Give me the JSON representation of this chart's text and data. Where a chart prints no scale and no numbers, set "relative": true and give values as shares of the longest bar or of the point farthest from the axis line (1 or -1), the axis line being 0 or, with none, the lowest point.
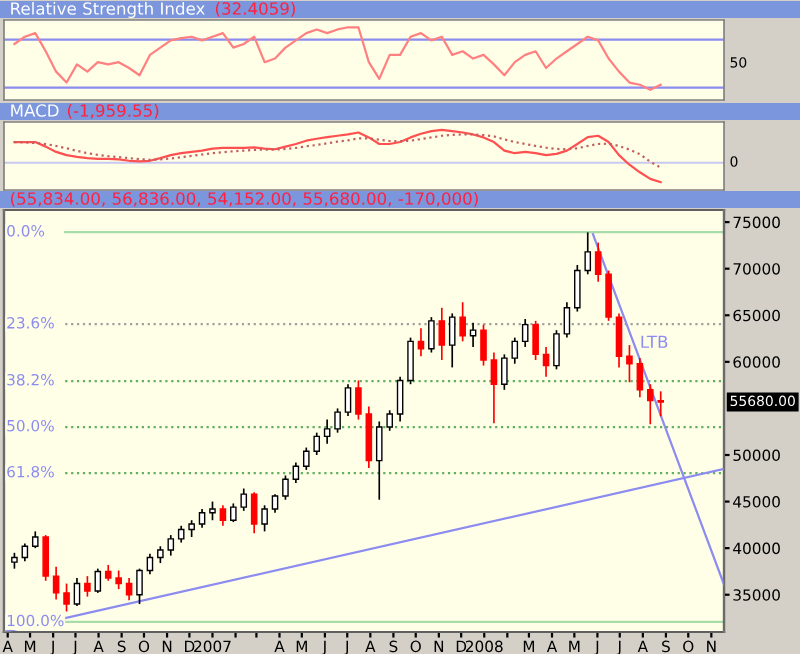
{
  "chart_data": [
    {
      "type": "line",
      "title": "Relative Strength Index",
      "subtitle": "(32.4059)",
      "x": [
        "2006-04-10",
        "2006-04-24",
        "2006-05-08",
        "2006-05-22",
        "2006-06-05",
        "2006-06-19",
        "2006-07-03",
        "2006-07-17",
        "2006-07-31",
        "2006-08-14",
        "2006-08-28",
        "2006-09-11",
        "2006-09-25",
        "2006-10-09",
        "2006-10-23",
        "2006-11-06",
        "2006-11-20",
        "2006-12-04",
        "2006-12-18",
        "2007-01-01",
        "2007-01-15",
        "2007-01-29",
        "2007-02-12",
        "2007-02-26",
        "2007-03-12",
        "2007-03-26",
        "2007-04-09",
        "2007-04-23",
        "2007-05-07",
        "2007-05-21",
        "2007-06-04",
        "2007-06-18",
        "2007-07-02",
        "2007-07-16",
        "2007-07-30",
        "2007-08-13",
        "2007-08-27",
        "2007-09-10",
        "2007-09-24",
        "2007-10-08",
        "2007-10-22",
        "2007-11-05",
        "2007-11-19",
        "2007-12-03",
        "2007-12-17",
        "2007-12-31",
        "2008-01-14",
        "2008-01-28",
        "2008-02-11",
        "2008-02-25",
        "2008-03-10",
        "2008-03-24",
        "2008-04-07",
        "2008-04-21",
        "2008-05-05",
        "2008-05-19",
        "2008-06-02",
        "2008-06-16",
        "2008-06-30",
        "2008-07-14",
        "2008-07-28",
        "2008-08-11",
        "2008-08-25"
      ],
      "series": [
        {
          "color": "#ff8080",
          "line_style": "solid",
          "values": [
            0.77,
            0.87,
            0.92,
            0.67,
            0.39,
            0.24,
            0.49,
            0.39,
            0.52,
            0.49,
            0.52,
            0.44,
            0.34,
            0.62,
            0.72,
            0.82,
            0.85,
            0.87,
            0.82,
            0.87,
            0.92,
            0.72,
            0.77,
            0.87,
            0.52,
            0.57,
            0.72,
            0.82,
            0.92,
            0.97,
            0.92,
            0.97,
            1,
            1,
            0.52,
            0.29,
            0.62,
            0.62,
            0.87,
            0.92,
            0.82,
            0.87,
            0.62,
            0.67,
            0.57,
            0.62,
            0.49,
            0.34,
            0.52,
            0.62,
            0.67,
            0.44,
            0.57,
            0.67,
            0.77,
            0.87,
            0.82,
            0.57,
            0.39,
            0.24,
            0.21,
            0.14,
            0.21
          ]
        }
      ],
      "relative": true,
      "xlim": [
        "2006-03-27",
        "2008-11-18"
      ],
      "annotations": [
        "50"
      ],
      "ref_lines": [
        {
          "axis": "y",
          "value": 0.83,
          "color": "#8c8cf0",
          "line_style": "solid"
        },
        {
          "axis": "y",
          "value": 0.17,
          "color": "#8c8cf0",
          "line_style": "solid"
        }
      ]
    },
    {
      "type": "line",
      "title": "MACD",
      "subtitle": "(-1,959.55)",
      "x": [
        "2006-04-10",
        "2006-04-24",
        "2006-05-08",
        "2006-05-22",
        "2006-06-05",
        "2006-06-19",
        "2006-07-03",
        "2006-07-17",
        "2006-07-31",
        "2006-08-14",
        "2006-08-28",
        "2006-09-11",
        "2006-09-25",
        "2006-10-09",
        "2006-10-23",
        "2006-11-06",
        "2006-11-20",
        "2006-12-04",
        "2006-12-18",
        "2007-01-01",
        "2007-01-15",
        "2007-01-29",
        "2007-02-12",
        "2007-02-26",
        "2007-03-12",
        "2007-03-26",
        "2007-04-09",
        "2007-04-23",
        "2007-05-07",
        "2007-05-21",
        "2007-06-04",
        "2007-06-18",
        "2007-07-02",
        "2007-07-16",
        "2007-07-30",
        "2007-08-13",
        "2007-08-27",
        "2007-09-10",
        "2007-09-24",
        "2007-10-08",
        "2007-10-22",
        "2007-11-05",
        "2007-11-19",
        "2007-12-03",
        "2007-12-17",
        "2007-12-31",
        "2008-01-14",
        "2008-01-28",
        "2008-02-11",
        "2008-02-25",
        "2008-03-10",
        "2008-03-24",
        "2008-04-07",
        "2008-04-21",
        "2008-05-05",
        "2008-05-19",
        "2008-06-02",
        "2008-06-16",
        "2008-06-30",
        "2008-07-14",
        "2008-07-28",
        "2008-08-11",
        "2008-08-25"
      ],
      "series": [
        {
          "color": "#ff5050",
          "line_style": "solid",
          "values": [
            0.63,
            0.63,
            0.63,
            0.49,
            0.33,
            0.23,
            0.18,
            0.14,
            0.12,
            0.12,
            0.1,
            0.06,
            0.04,
            0.06,
            0.14,
            0.23,
            0.29,
            0.33,
            0.37,
            0.43,
            0.45,
            0.45,
            0.45,
            0.47,
            0.43,
            0.41,
            0.49,
            0.57,
            0.67,
            0.73,
            0.78,
            0.82,
            0.86,
            0.92,
            0.77,
            0.57,
            0.57,
            0.63,
            0.77,
            0.88,
            0.96,
            1,
            0.96,
            0.92,
            0.86,
            0.77,
            0.63,
            0.37,
            0.29,
            0.33,
            0.29,
            0.23,
            0.27,
            0.37,
            0.57,
            0.78,
            0.82,
            0.63,
            0.23,
            -0.06,
            -0.29,
            -0.49,
            -0.59
          ]
        },
        {
          "color": "#c06060",
          "line_style": "dotted",
          "values": [
            0.63,
            0.62,
            0.6,
            0.57,
            0.51,
            0.44,
            0.36,
            0.29,
            0.24,
            0.2,
            0.17,
            0.14,
            0.11,
            0.09,
            0.1,
            0.13,
            0.17,
            0.21,
            0.25,
            0.29,
            0.32,
            0.35,
            0.37,
            0.39,
            0.4,
            0.4,
            0.42,
            0.45,
            0.5,
            0.54,
            0.59,
            0.64,
            0.68,
            0.74,
            0.74,
            0.7,
            0.66,
            0.65,
            0.67,
            0.72,
            0.77,
            0.82,
            0.85,
            0.86,
            0.86,
            0.84,
            0.8,
            0.71,
            0.63,
            0.57,
            0.51,
            0.46,
            0.42,
            0.41,
            0.44,
            0.51,
            0.57,
            0.58,
            0.51,
            0.4,
            0.26,
            0.03,
            -0.15
          ]
        }
      ],
      "relative": true,
      "xlim": [
        "2006-03-27",
        "2008-11-18"
      ],
      "annotations": [
        "0"
      ],
      "ref_lines": [
        {
          "axis": "y",
          "value": 0,
          "color": "#c8c8f0",
          "line_style": "solid"
        }
      ]
    },
    {
      "type": "candlestick",
      "subtitle": "(55,834.00, 56,836.00, 54,152.00, 55,680.00, -170,000)",
      "x": [
        "2006-04-10",
        "2006-04-24",
        "2006-05-08",
        "2006-05-22",
        "2006-06-05",
        "2006-06-19",
        "2006-07-03",
        "2006-07-17",
        "2006-07-31",
        "2006-08-14",
        "2006-08-28",
        "2006-09-11",
        "2006-09-25",
        "2006-10-09",
        "2006-10-23",
        "2006-11-06",
        "2006-11-20",
        "2006-12-04",
        "2006-12-18",
        "2007-01-01",
        "2007-01-15",
        "2007-01-29",
        "2007-02-12",
        "2007-02-26",
        "2007-03-12",
        "2007-03-26",
        "2007-04-09",
        "2007-04-23",
        "2007-05-07",
        "2007-05-21",
        "2007-06-04",
        "2007-06-18",
        "2007-07-02",
        "2007-07-16",
        "2007-07-30",
        "2007-08-13",
        "2007-08-27",
        "2007-09-10",
        "2007-09-24",
        "2007-10-08",
        "2007-10-22",
        "2007-11-05",
        "2007-11-19",
        "2007-12-03",
        "2007-12-17",
        "2007-12-31",
        "2008-01-14",
        "2008-01-28",
        "2008-02-11",
        "2008-02-25",
        "2008-03-10",
        "2008-03-24",
        "2008-04-07",
        "2008-04-21",
        "2008-05-05",
        "2008-05-19",
        "2008-06-02",
        "2008-06-16",
        "2008-06-30",
        "2008-07-14",
        "2008-07-28",
        "2008-08-11",
        "2008-08-25"
      ],
      "ohlc": [
        [
          38500,
          39500,
          37800,
          39000
        ],
        [
          39000,
          40500,
          38600,
          40200
        ],
        [
          40200,
          41800,
          40000,
          41200
        ],
        [
          41200,
          41400,
          36500,
          37000
        ],
        [
          37000,
          38000,
          34500,
          35200
        ],
        [
          35200,
          36200,
          33200,
          34000
        ],
        [
          34000,
          36800,
          33800,
          36200
        ],
        [
          36200,
          37000,
          34800,
          35400
        ],
        [
          35400,
          37800,
          35200,
          37500
        ],
        [
          37500,
          38200,
          36500,
          36800
        ],
        [
          36800,
          37600,
          35600,
          36200
        ],
        [
          36200,
          36800,
          34400,
          35000
        ],
        [
          35000,
          37800,
          34000,
          37600
        ],
        [
          37600,
          39400,
          37200,
          39000
        ],
        [
          39000,
          40200,
          38400,
          39800
        ],
        [
          39800,
          41400,
          39200,
          41000
        ],
        [
          41000,
          42400,
          40600,
          42000
        ],
        [
          42000,
          43000,
          41200,
          42600
        ],
        [
          42600,
          44200,
          42200,
          43800
        ],
        [
          43800,
          45000,
          43000,
          44200
        ],
        [
          44200,
          44600,
          42400,
          43000
        ],
        [
          43000,
          44800,
          42800,
          44400
        ],
        [
          44400,
          46400,
          44000,
          45800
        ],
        [
          45800,
          46000,
          41600,
          42600
        ],
        [
          42600,
          44600,
          41800,
          44200
        ],
        [
          44200,
          45800,
          43800,
          45600
        ],
        [
          45600,
          47800,
          45200,
          47400
        ],
        [
          47400,
          49200,
          47000,
          48800
        ],
        [
          48800,
          50800,
          48400,
          50400
        ],
        [
          50400,
          52400,
          50000,
          52000
        ],
        [
          52000,
          53800,
          51200,
          52800
        ],
        [
          52800,
          55000,
          52400,
          54600
        ],
        [
          54600,
          57600,
          54200,
          57200
        ],
        [
          57200,
          58000,
          53800,
          54400
        ],
        [
          54400,
          55200,
          48600,
          49400
        ],
        [
          49400,
          53600,
          45200,
          53000
        ],
        [
          53000,
          54800,
          52600,
          54400
        ],
        [
          54400,
          58400,
          53600,
          58000
        ],
        [
          58000,
          62600,
          57600,
          62200
        ],
        [
          62200,
          63600,
          60600,
          61400
        ],
        [
          61400,
          64800,
          61000,
          64400
        ],
        [
          64400,
          65800,
          60200,
          61800
        ],
        [
          61800,
          65200,
          59400,
          64800
        ],
        [
          64800,
          66400,
          62200,
          62800
        ],
        [
          62800,
          64200,
          61600,
          63400
        ],
        [
          63400,
          64000,
          59600,
          60200
        ],
        [
          60200,
          61000,
          53400,
          57600
        ],
        [
          57600,
          60800,
          57000,
          60400
        ],
        [
          60400,
          62600,
          59800,
          62200
        ],
        [
          62200,
          64600,
          61600,
          64000
        ],
        [
          64000,
          64400,
          60200,
          60800
        ],
        [
          60800,
          61600,
          58400,
          59600
        ],
        [
          59600,
          63400,
          59200,
          63000
        ],
        [
          63000,
          66400,
          62600,
          65800
        ],
        [
          65800,
          70400,
          65400,
          69800
        ],
        [
          69800,
          73900,
          69400,
          71800
        ],
        [
          71800,
          72800,
          68600,
          69400
        ],
        [
          69400,
          69800,
          64400,
          64800
        ],
        [
          64800,
          65200,
          59400,
          60600
        ],
        [
          60600,
          61800,
          57800,
          59800
        ],
        [
          59800,
          60400,
          56200,
          57000
        ],
        [
          57000,
          57600,
          53300,
          55834
        ],
        [
          55834,
          56836,
          54152,
          55680
        ]
      ],
      "colors": [
        "#ffffff",
        "#ffffff",
        "#ffffff",
        "#ff0000",
        "#ff0000",
        "#ff0000",
        "#ffffff",
        "#ff0000",
        "#ffffff",
        "#ff0000",
        "#ff0000",
        "#ff0000",
        "#ffffff",
        "#ffffff",
        "#ffffff",
        "#ffffff",
        "#ffffff",
        "#ffffff",
        "#ffffff",
        "#ffffff",
        "#ff0000",
        "#ffffff",
        "#ffffff",
        "#ff0000",
        "#ffffff",
        "#ffffff",
        "#ffffff",
        "#ffffff",
        "#ffffff",
        "#ffffff",
        "#ffffff",
        "#ffffff",
        "#ffffff",
        "#ff0000",
        "#ff0000",
        "#ffffff",
        "#ffffff",
        "#ffffff",
        "#ffffff",
        "#ff0000",
        "#ffffff",
        "#ff0000",
        "#ffffff",
        "#ff0000",
        "#ffffff",
        "#ff0000",
        "#ff0000",
        "#ffffff",
        "#ffffff",
        "#ffffff",
        "#ff0000",
        "#ff0000",
        "#ffffff",
        "#ffffff",
        "#ffffff",
        "#ffffff",
        "#ff0000",
        "#ff0000",
        "#ff0000",
        "#ff0000",
        "#ff0000",
        "#ff0000",
        "#ff0000"
      ],
      "series": [
        {
          "type": "line",
          "color": "#8c8cf0",
          "x": [
            "2006-03-27",
            "2008-11-18"
          ],
          "values": [
            31000,
            48500
          ]
        },
        {
          "type": "line",
          "color": "#8c8cf0",
          "x": [
            "2008-05-26",
            "2008-11-18"
          ],
          "values": [
            73700,
            36100
          ]
        }
      ],
      "xlim": [
        "2006-03-27",
        "2008-11-18"
      ],
      "ylim": [
        31000,
        76300
      ],
      "yticks": [
        35000,
        40000,
        45000,
        50000,
        60000,
        65000,
        70000,
        75000
      ],
      "xticks": [
        {
          "value": "2006-04-01",
          "label": "A"
        },
        {
          "value": "2006-05-01",
          "label": "M"
        },
        {
          "value": "2006-06-01",
          "label": "J"
        },
        {
          "value": "2006-07-01",
          "label": "J"
        },
        {
          "value": "2006-08-01",
          "label": "A"
        },
        {
          "value": "2006-09-01",
          "label": "S"
        },
        {
          "value": "2006-10-01",
          "label": "O"
        },
        {
          "value": "2006-11-01",
          "label": "N"
        },
        {
          "value": "2006-12-01",
          "label": "D"
        },
        {
          "value": "2007-01-01",
          "label": "2007"
        },
        {
          "value": "2007-02-01",
          "label": null
        },
        {
          "value": "2007-03-01",
          "label": null
        },
        {
          "value": "2007-04-01",
          "label": "A"
        },
        {
          "value": "2007-05-01",
          "label": "M"
        },
        {
          "value": "2007-06-01",
          "label": "J"
        },
        {
          "value": "2007-07-01",
          "label": "J"
        },
        {
          "value": "2007-08-01",
          "label": "A"
        },
        {
          "value": "2007-09-01",
          "label": "S"
        },
        {
          "value": "2007-10-01",
          "label": "O"
        },
        {
          "value": "2007-11-01",
          "label": "N"
        },
        {
          "value": "2007-12-01",
          "label": "D"
        },
        {
          "value": "2008-01-01",
          "label": "2008"
        },
        {
          "value": "2008-02-01",
          "label": null
        },
        {
          "value": "2008-03-01",
          "label": "M"
        },
        {
          "value": "2008-04-01",
          "label": "A"
        },
        {
          "value": "2008-05-01",
          "label": "M"
        },
        {
          "value": "2008-06-01",
          "label": "J"
        },
        {
          "value": "2008-07-01",
          "label": "J"
        },
        {
          "value": "2008-08-01",
          "label": "A"
        },
        {
          "value": "2008-09-01",
          "label": "S"
        },
        {
          "value": "2008-10-01",
          "label": "O"
        },
        {
          "value": "2008-11-01",
          "label": "N"
        }
      ],
      "y2lim": [
        102.6,
        -5.7
      ],
      "ref_lines": [
        {
          "axis": "y2",
          "value": 0,
          "label": "0.0%",
          "color": "#a8dca8",
          "line_style": "solid"
        },
        {
          "axis": "y2",
          "value": 23.6,
          "label": "23.6%",
          "color": "#a0a0a0",
          "line_style": "dotted"
        },
        {
          "axis": "y2",
          "value": 38.2,
          "label": "38.2%",
          "color": "#60b060",
          "line_style": "dotted"
        },
        {
          "axis": "y2",
          "value": 50,
          "label": "50.0%",
          "color": "#60b060",
          "line_style": "dotted"
        },
        {
          "axis": "y2",
          "value": 61.8,
          "label": "61.8%",
          "color": "#60b060",
          "line_style": "dotted"
        },
        {
          "axis": "y2",
          "value": 100,
          "label": "100.0%",
          "color": "#a8dca8",
          "line_style": "solid"
        }
      ],
      "annotations": [
        {
          "text": "LTB",
          "x": "2008-07-28",
          "y": 62000
        },
        "55680.00"
      ]
    }
  ]
}
